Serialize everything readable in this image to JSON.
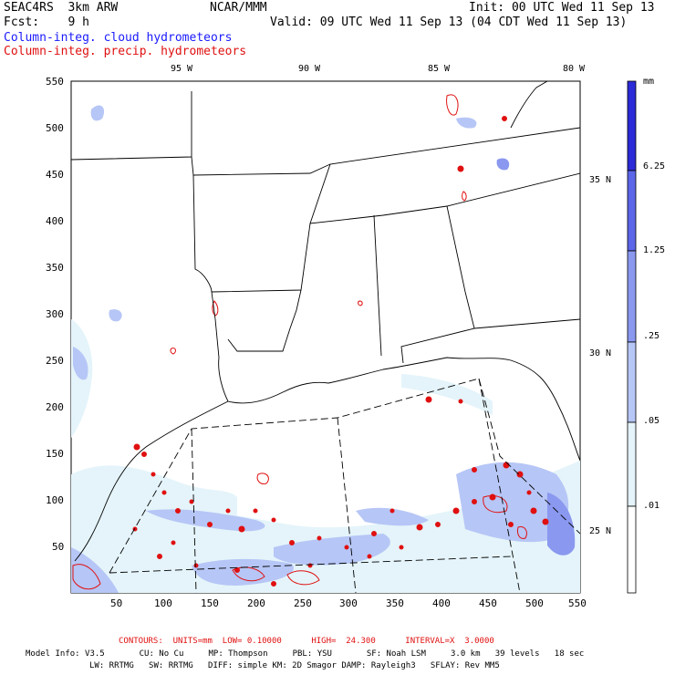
{
  "header": {
    "line1_left": "SEAC4RS  3km ARW",
    "line1_center": "NCAR/MMM",
    "line1_right": "Init: 00 UTC Wed 11 Sep 13",
    "line2_left": "Fcst:    9 h",
    "line2_right": "Valid: 09 UTC Wed 11 Sep 13 (04 CDT Wed 11 Sep 13)",
    "legend_cloud": "Column-integ. cloud hydrometeors",
    "legend_precip": "Column-integ. precip. hydrometeors"
  },
  "colors": {
    "cloud": "#1a1aff",
    "precip": "#e01010",
    "bar_levels": [
      "#ffffff",
      "#e4f4fa",
      "#b6c6f6",
      "#8a98ef",
      "#5c66e8",
      "#2b2bd8"
    ]
  },
  "axes": {
    "lon_labels": [
      "95 W",
      "90 W",
      "85 W",
      "80 W"
    ],
    "lat_labels": [
      "35 N",
      "30 N",
      "25 N"
    ],
    "y_ticks": [
      "550",
      "500",
      "450",
      "400",
      "350",
      "300",
      "250",
      "200",
      "150",
      "100",
      "50"
    ],
    "x_ticks": [
      "50",
      "100",
      "150",
      "200",
      "250",
      "300",
      "350",
      "400",
      "450",
      "500",
      "550"
    ]
  },
  "colorbar": {
    "unit": "mm",
    "labels": [
      "6.25",
      "1.25",
      ".25",
      ".05",
      ".01"
    ]
  },
  "footer": {
    "contours": "CONTOURS:  UNITS=mm  LOW= 0.10000      HIGH=  24.300      INTERVAL=X  3.0000",
    "model_line1": "Model Info: V3.5       CU: No Cu     MP: Thompson     PBL: YSU       SF: Noah LSM     3.0 km   39 levels   18 sec",
    "model_line2": "LW: RRTMG   SW: RRTMG   DIFF: simple KM: 2D Smagor DAMP: Rayleigh3   SFLAY: Rev MM5"
  }
}
